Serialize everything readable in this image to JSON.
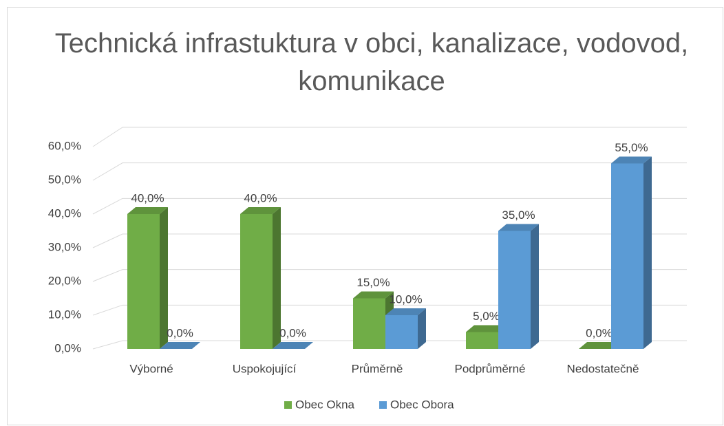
{
  "chart_data": {
    "type": "bar",
    "title": "Technická infrastuktura v obci, kanalizace, vodovod, komunikace",
    "categories": [
      "Výborné",
      "Uspokojující",
      "Průměrně",
      "Podprůměrné",
      "Nedostatečně"
    ],
    "series": [
      {
        "name": "Obec Okna",
        "color": "#70ad47",
        "values": [
          40,
          40,
          15,
          5,
          0
        ],
        "value_labels": [
          "40,0%",
          "40,0%",
          "15,0%",
          "5,0%",
          "0,0%"
        ]
      },
      {
        "name": "Obec Obora",
        "color": "#5b9bd5",
        "values": [
          0,
          0,
          10,
          35,
          55
        ],
        "value_labels": [
          "0,0%",
          "0,0%",
          "10,0%",
          "35,0%",
          "55,0%"
        ]
      }
    ],
    "ylim": [
      0,
      60
    ],
    "yticks": [
      {
        "value": 0,
        "label": "0,0%"
      },
      {
        "value": 10,
        "label": "10,0%"
      },
      {
        "value": 20,
        "label": "20,0%"
      },
      {
        "value": 30,
        "label": "30,0%"
      },
      {
        "value": 40,
        "label": "40,0%"
      },
      {
        "value": 50,
        "label": "50,0%"
      },
      {
        "value": 60,
        "label": "60,0%"
      }
    ],
    "grid": true,
    "legend": "bottom"
  }
}
